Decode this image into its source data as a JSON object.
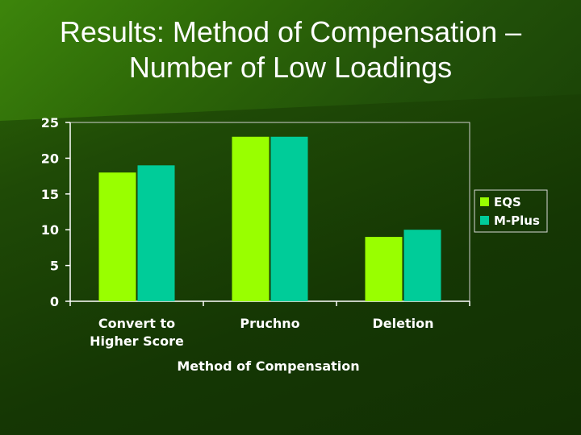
{
  "slide": {
    "title_line1": "Results: Method of Compensation –",
    "title_line2": "Number of Low Loadings"
  },
  "colors": {
    "eqs": "#99ff00",
    "mplus": "#00cc99",
    "axis": "#ffffff"
  },
  "chart_data": {
    "type": "bar",
    "title": "",
    "xlabel": "Method of Compensation",
    "ylabel": "",
    "categories": [
      [
        "Convert to",
        "Higher Score"
      ],
      [
        "Pruchno"
      ],
      [
        "Deletion"
      ]
    ],
    "series": [
      {
        "name": "EQS",
        "values": [
          18,
          23,
          9
        ]
      },
      {
        "name": "M-Plus",
        "values": [
          19,
          23,
          10
        ]
      }
    ],
    "ylim": [
      0,
      25
    ],
    "yticks": [
      0,
      5,
      10,
      15,
      20,
      25
    ],
    "grid": false,
    "legend": "right"
  }
}
